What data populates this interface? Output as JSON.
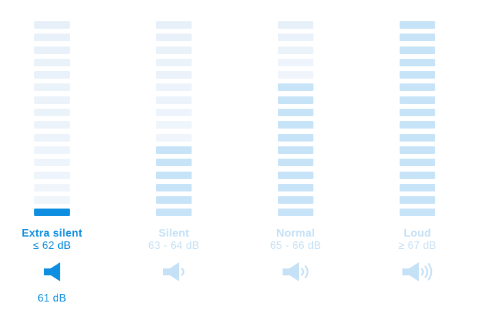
{
  "colors": {
    "active_blue": "#0d8ee0",
    "inactive_blue": "#c5e1f6",
    "bar_pale": "#ebf3fa",
    "bar_pale_top": "#e7f0f9",
    "bar_filled": "#c7e3f8",
    "background": "#ffffff"
  },
  "bars_per_column": 16,
  "current_level": {
    "label": "61 dB",
    "category": "Extra silent"
  },
  "columns": [
    {
      "key": "extra-silent",
      "name": "Extra silent",
      "range": "≤ 62 dB",
      "value": "61 dB",
      "active": true,
      "icon": "speaker-icon",
      "waves": 0,
      "bars": {
        "total": 16,
        "pale": 15,
        "filled": 0,
        "active": 1
      }
    },
    {
      "key": "silent",
      "name": "Silent",
      "range": "63 - 64 dB",
      "active": false,
      "icon": "speaker-one-wave-icon",
      "waves": 1,
      "bars": {
        "total": 16,
        "pale": 10,
        "filled": 6,
        "active": 0
      }
    },
    {
      "key": "normal",
      "name": "Normal",
      "range": "65 - 66 dB",
      "active": false,
      "icon": "speaker-two-waves-icon",
      "waves": 2,
      "bars": {
        "total": 16,
        "pale": 5,
        "filled": 11,
        "active": 0
      }
    },
    {
      "key": "loud",
      "name": "Loud",
      "range": "≥ 67 dB",
      "active": false,
      "icon": "speaker-three-waves-icon",
      "waves": 3,
      "bars": {
        "total": 16,
        "pale": 0,
        "filled": 16,
        "active": 0
      }
    }
  ]
}
